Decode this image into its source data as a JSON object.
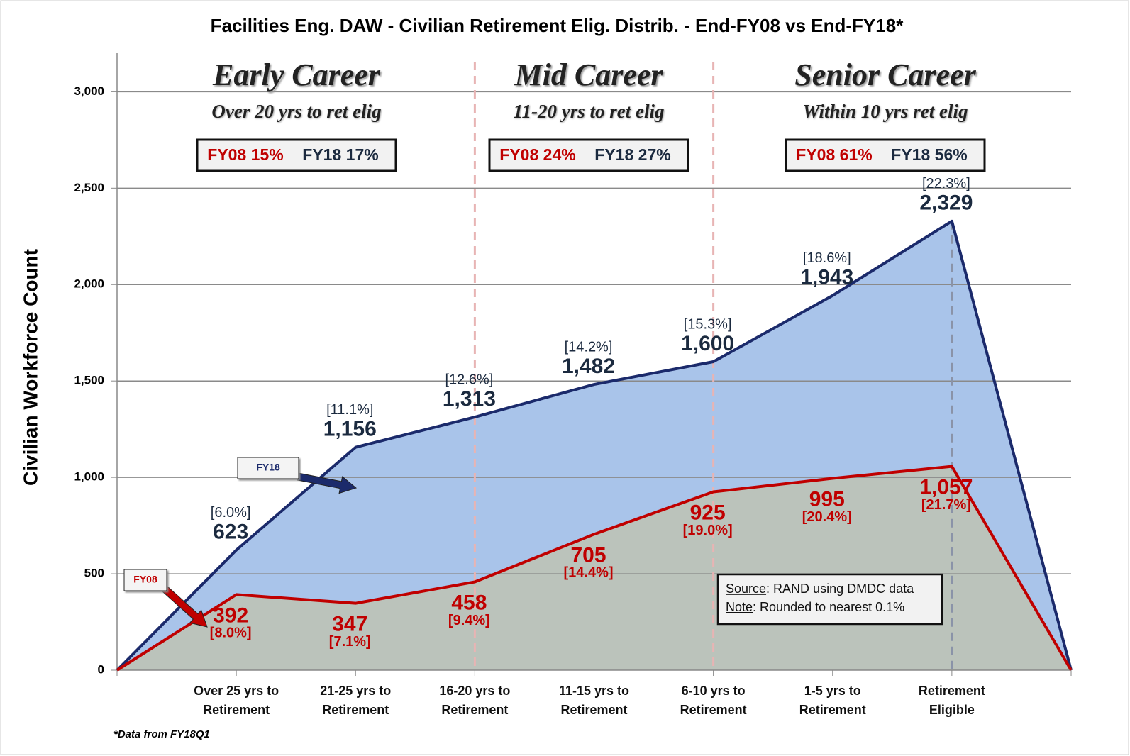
{
  "chart_data": {
    "type": "area",
    "title": "Facilities Eng. DAW - Civilian Retirement Elig. Distrib. - End-FY08 vs End-FY18*",
    "y_label": "Civilian Workforce Count",
    "footnote": "*Data from FY18Q1",
    "categories": [
      null,
      "Over 25 yrs to Retirement",
      "21-25 yrs to Retirement",
      "16-20 yrs to Retirement",
      "11-15 yrs to Retirement",
      "6-10 yrs to Retirement",
      "1-5 yrs to Retirement",
      "Retirement Eligible",
      null
    ],
    "series": [
      {
        "name": "FY18",
        "color": "#1b2a6b",
        "fill": "#a9c4ea",
        "values": [
          0,
          623,
          1156,
          1313,
          1482,
          1600,
          1943,
          2329,
          0
        ],
        "value_labels": [
          null,
          "623",
          "1,156",
          "1,313",
          "1,482",
          "1,600",
          "1,943",
          "2,329",
          null
        ],
        "percent_labels": [
          null,
          "[6.0%]",
          "[11.1%]",
          "[12.6%]",
          "[14.2%]",
          "[15.3%]",
          "[18.6%]",
          "[22.3%]",
          null
        ]
      },
      {
        "name": "FY08",
        "color": "#c00000",
        "fill": "#bcc3b8",
        "values": [
          0,
          392,
          347,
          458,
          705,
          925,
          995,
          1057,
          0
        ],
        "value_labels": [
          null,
          "392",
          "347",
          "458",
          "705",
          "925",
          "995",
          "1,057",
          null
        ],
        "percent_labels": [
          null,
          "[8.0%]",
          "[7.1%]",
          "[9.4%]",
          "[14.4%]",
          "[19.0%]",
          "[20.4%]",
          "[21.7%]",
          null
        ]
      }
    ],
    "ylim": [
      0,
      3200
    ],
    "yticks": [
      0,
      500,
      {
        "value": 1000,
        "label": "1,000"
      },
      {
        "value": 1500,
        "label": "1,500"
      },
      {
        "value": 2000,
        "label": "2,000"
      },
      {
        "value": 2500,
        "label": "2,500"
      },
      {
        "value": 3000,
        "label": "3,000"
      }
    ],
    "grid": true,
    "sections": [
      {
        "title": "Early Career",
        "subtitle": "Over 20 yrs to ret elig",
        "fy08": "FY08 15%",
        "fy18": "FY18 17%"
      },
      {
        "title": "Mid Career",
        "subtitle": "11-20 yrs to ret elig",
        "fy08": "FY08 24%",
        "fy18": "FY18 27%"
      },
      {
        "title": "Senior Career",
        "subtitle": "Within 10 yrs ret elig",
        "fy08": "FY08 61%",
        "fy18": "FY18 56%"
      }
    ],
    "source_label": "Source",
    "source_text": ":  RAND using DMDC data",
    "note_label": "Note",
    "note_text": ":  Rounded to nearest 0.1%"
  }
}
